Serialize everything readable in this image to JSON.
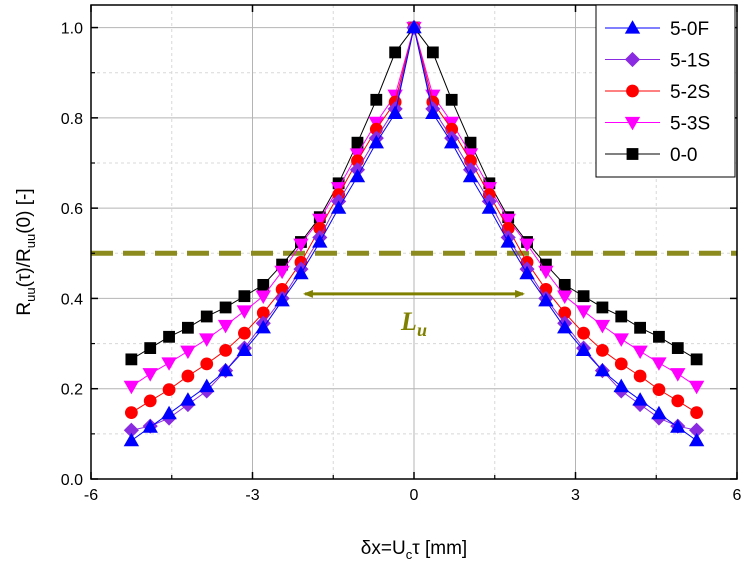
{
  "chart_data": {
    "type": "line",
    "title": "",
    "xlabel": {
      "main": "δx=U",
      "sub": "c",
      "tail": "τ [mm]"
    },
    "ylabel": {
      "p1": "R",
      "s1": "uu",
      "p2": "(τ)/R",
      "s2": "uu",
      "p3": "(0) [-]"
    },
    "xlim": [
      -6,
      6
    ],
    "ylim": [
      0,
      1.05
    ],
    "xticks": [
      -6,
      -3,
      0,
      3,
      6
    ],
    "xtick_labels": [
      "-6",
      "-3",
      "0",
      "3",
      "6"
    ],
    "yticks": [
      0,
      0.2,
      0.4,
      0.6,
      0.8,
      1.0
    ],
    "ytick_labels": [
      "0.0",
      "0.2",
      "0.4",
      "0.6",
      "0.8",
      "1.0"
    ],
    "grid": true,
    "legend_position": "top-right",
    "x": [
      -5.25,
      -4.9,
      -4.55,
      -4.2,
      -3.85,
      -3.5,
      -3.15,
      -2.8,
      -2.45,
      -2.1,
      -1.75,
      -1.4,
      -1.05,
      -0.7,
      -0.35,
      0,
      0.35,
      0.7,
      1.05,
      1.4,
      1.75,
      2.1,
      2.45,
      2.8,
      3.15,
      3.5,
      3.85,
      4.2,
      4.55,
      4.9,
      5.25
    ],
    "series": [
      {
        "name": "5-0F",
        "color": "#0000ff",
        "marker": "triangle-up",
        "values": [
          0.085,
          0.115,
          0.145,
          0.175,
          0.205,
          0.24,
          0.285,
          0.335,
          0.395,
          0.455,
          0.525,
          0.6,
          0.67,
          0.745,
          0.81,
          1.0,
          0.81,
          0.745,
          0.67,
          0.6,
          0.525,
          0.455,
          0.395,
          0.335,
          0.285,
          0.24,
          0.205,
          0.175,
          0.145,
          0.115,
          0.085
        ]
      },
      {
        "name": "5-1S",
        "color": "#8a2be2",
        "marker": "diamond",
        "values": [
          0.108,
          0.117,
          0.135,
          0.165,
          0.195,
          0.24,
          0.29,
          0.345,
          0.4,
          0.465,
          0.535,
          0.615,
          0.685,
          0.755,
          0.82,
          1.0,
          0.82,
          0.755,
          0.685,
          0.615,
          0.535,
          0.465,
          0.4,
          0.345,
          0.29,
          0.24,
          0.195,
          0.165,
          0.135,
          0.117,
          0.108
        ]
      },
      {
        "name": "5-2S",
        "color": "#ff0000",
        "marker": "circle",
        "values": [
          0.147,
          0.173,
          0.198,
          0.228,
          0.255,
          0.285,
          0.323,
          0.368,
          0.42,
          0.48,
          0.555,
          0.63,
          0.705,
          0.775,
          0.835,
          1.0,
          0.835,
          0.775,
          0.705,
          0.63,
          0.555,
          0.48,
          0.42,
          0.368,
          0.323,
          0.285,
          0.255,
          0.228,
          0.198,
          0.173,
          0.147
        ]
      },
      {
        "name": "5-3S",
        "color": "#ff00ff",
        "marker": "triangle-down",
        "values": [
          0.205,
          0.233,
          0.257,
          0.283,
          0.31,
          0.34,
          0.372,
          0.405,
          0.46,
          0.52,
          0.575,
          0.645,
          0.72,
          0.79,
          0.85,
          1.0,
          0.85,
          0.79,
          0.72,
          0.645,
          0.575,
          0.52,
          0.46,
          0.405,
          0.372,
          0.34,
          0.31,
          0.283,
          0.257,
          0.233,
          0.205
        ]
      },
      {
        "name": "0-0",
        "color": "#000000",
        "marker": "square",
        "values": [
          0.265,
          0.29,
          0.315,
          0.335,
          0.36,
          0.38,
          0.405,
          0.43,
          0.475,
          0.525,
          0.58,
          0.655,
          0.745,
          0.84,
          0.945,
          1.0,
          0.945,
          0.84,
          0.745,
          0.655,
          0.58,
          0.525,
          0.475,
          0.43,
          0.405,
          0.38,
          0.36,
          0.335,
          0.315,
          0.29,
          0.265
        ]
      }
    ],
    "annotations": {
      "threshold_value": 0.5,
      "threshold_color": "#8b8b1e",
      "arrow_from": -2.1,
      "arrow_to": 2.1,
      "arrow_y": 0.41,
      "arrow_color": "#808000",
      "label": {
        "main": "L",
        "sub": "u"
      }
    }
  }
}
